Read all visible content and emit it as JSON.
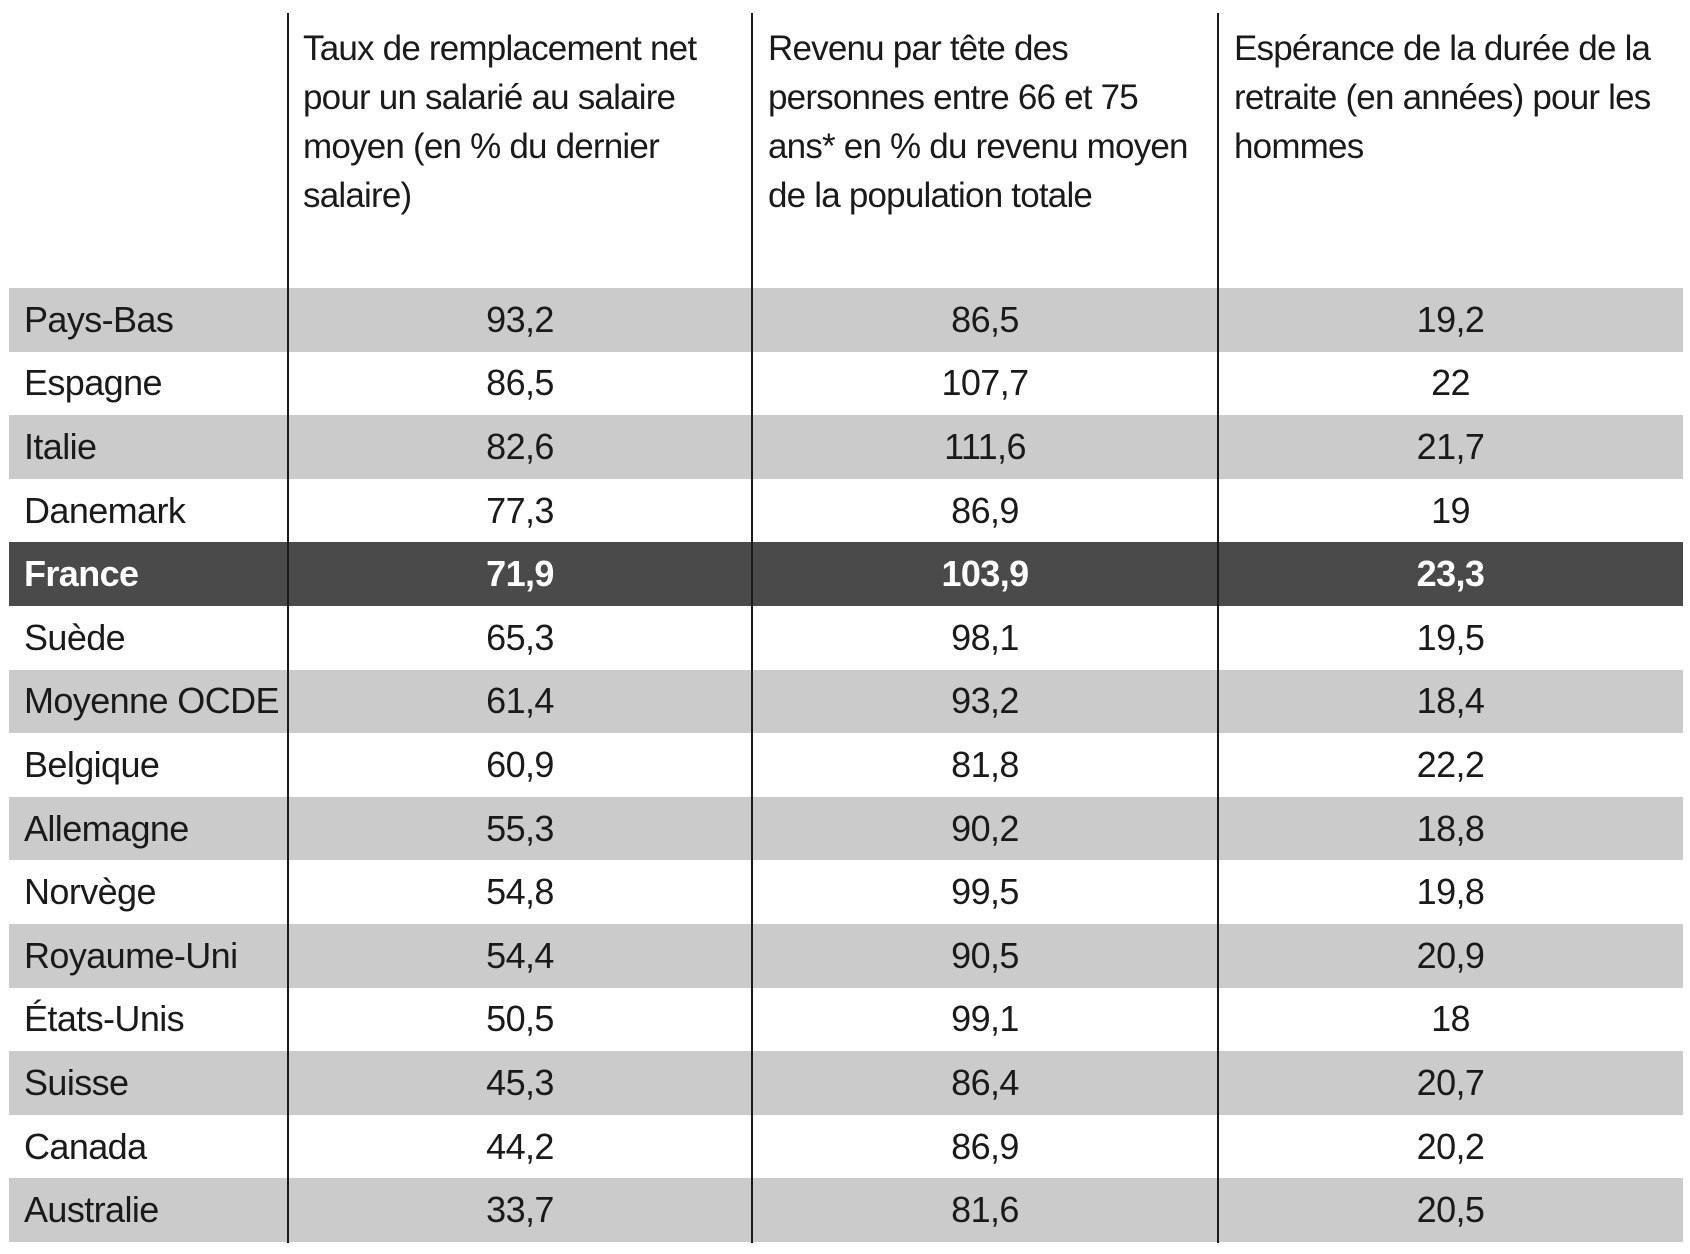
{
  "headers": [
    "",
    "Taux de remplacement net pour un salarié au salaire moyen (en % du dernier salaire)",
    "Revenu par tête des personnes entre 66 et 75 ans* en % du revenu moyen de la population totale",
    "Espérance de la durée de la retraite (en années) pour les hommes"
  ],
  "highlight_color": "#4a4a4a",
  "shade_color": "#cbcbcb",
  "rows": [
    [
      "Pays-Bas",
      "93,2",
      "86,5",
      "19,2"
    ],
    [
      "Espagne",
      "86,5",
      "107,7",
      "22"
    ],
    [
      "Italie",
      "82,6",
      "111,6",
      "21,7"
    ],
    [
      "Danemark",
      "77,3",
      "86,9",
      "19"
    ],
    [
      "France",
      "71,9",
      "103,9",
      "23,3"
    ],
    [
      "Suède",
      "65,3",
      "98,1",
      "19,5"
    ],
    [
      "Moyenne OCDE",
      "61,4",
      "93,2",
      "18,4"
    ],
    [
      "Belgique",
      "60,9",
      "81,8",
      "22,2"
    ],
    [
      "Allemagne",
      "55,3",
      "90,2",
      "18,8"
    ],
    [
      "Norvège",
      "54,8",
      "99,5",
      "19,8"
    ],
    [
      "Royaume-Uni",
      "54,4",
      "90,5",
      "20,9"
    ],
    [
      "États-Unis",
      "50,5",
      "99,1",
      "18"
    ],
    [
      "Suisse",
      "45,3",
      "86,4",
      "20,7"
    ],
    [
      "Canada",
      "44,2",
      "86,9",
      "20,2"
    ],
    [
      "Australie",
      "33,7",
      "81,6",
      "20,5"
    ]
  ]
}
